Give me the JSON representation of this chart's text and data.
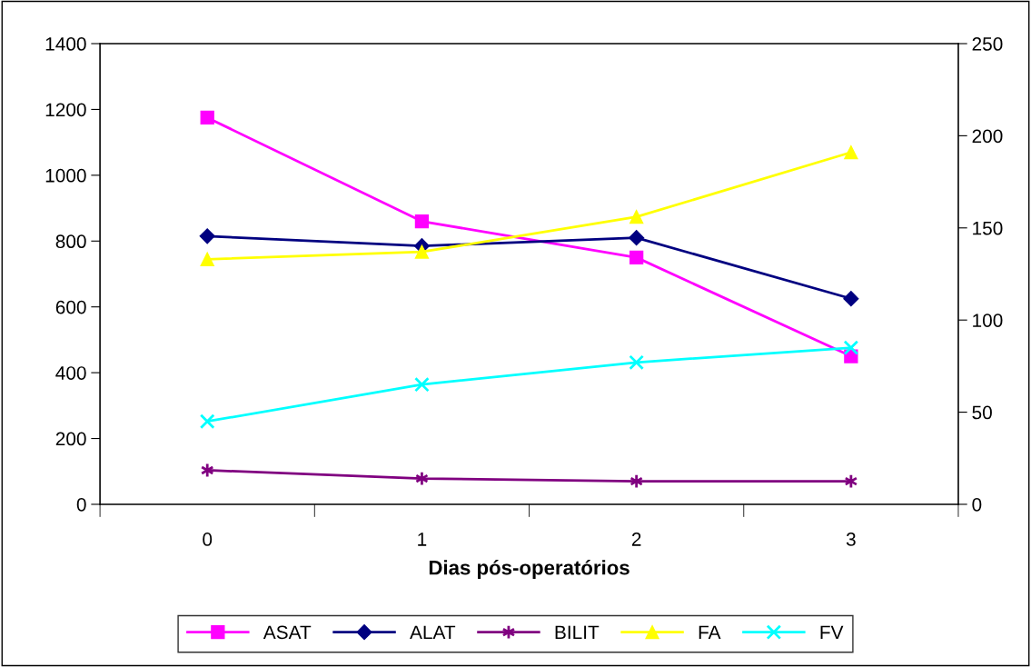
{
  "chart_data": {
    "type": "line",
    "xlabel": "Dias pós-operatórios",
    "categories": [
      "0",
      "1",
      "2",
      "3"
    ],
    "series": [
      {
        "name": "ASAT",
        "color": "#ff00ff",
        "marker": "square",
        "values": [
          1175,
          860,
          750,
          450
        ]
      },
      {
        "name": "ALAT",
        "color": "#000080",
        "marker": "diamond",
        "values": [
          815,
          785,
          810,
          625
        ]
      },
      {
        "name": "BILIT",
        "color": "#800080",
        "marker": "cross",
        "axis": "y2",
        "values": [
          18.5,
          14,
          12.5,
          12.5
        ]
      },
      {
        "name": "FA",
        "color": "#ffff00",
        "marker": "triangle",
        "axis": "y2",
        "values": [
          133,
          137,
          156,
          191
        ]
      },
      {
        "name": "FV",
        "color": "#00ffff",
        "marker": "cross",
        "axis": "y2",
        "values": [
          45,
          65,
          77,
          85
        ]
      }
    ],
    "ylim": [
      0,
      1400
    ],
    "yticks": [
      0,
      200,
      400,
      600,
      800,
      1000,
      1200,
      1400
    ],
    "y2lim": [
      0,
      250
    ],
    "y2ticks": [
      0,
      50,
      100,
      150,
      200,
      250
    ],
    "grid": false,
    "legend": "bottom"
  }
}
